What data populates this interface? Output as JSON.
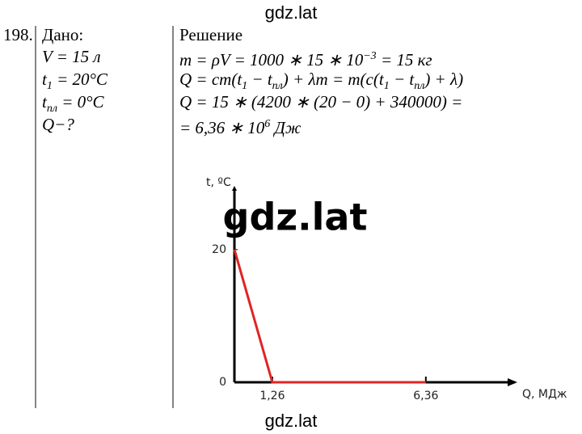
{
  "watermarks": [
    "gdz.lat",
    "gdz.lat",
    "gdz.lat"
  ],
  "problem_number": "198.",
  "given": {
    "title": "Дано:",
    "lines": [
      [
        "V = 15 л"
      ],
      [
        "t",
        "1",
        " = 20°C"
      ],
      [
        "t",
        "пл",
        " = 0°C"
      ],
      [
        "Q−?"
      ]
    ]
  },
  "solution": {
    "title": "Решение",
    "lines": [
      [
        "m = ρV = 1000 ∗ 15 ∗ 10",
        "−3",
        " = 15 кг"
      ],
      [
        "Q = cm(t",
        "1",
        " − t",
        "пл",
        ") + λm = m(c(t",
        "1",
        " − t",
        "пл",
        ") + λ)"
      ],
      [
        "Q = 15 ∗ (4200 ∗ (20 − 0) + 340000) ="
      ],
      [
        "= 6,36 ∗ 10",
        "6",
        " Дж"
      ]
    ]
  },
  "chart_data": {
    "type": "line",
    "x_label": "Q, МДж",
    "y_label": "t, ºC",
    "x": [
      0,
      1.26,
      6.36
    ],
    "series": [
      {
        "color": "#e02424",
        "values": [
          20,
          0,
          0
        ]
      }
    ],
    "xlim": [
      0,
      9.4
    ],
    "ylim": [
      0,
      29.6
    ],
    "xticks": [
      {
        "value": 1.26,
        "label": "1,26"
      },
      {
        "value": 6.36,
        "label": "6,36"
      }
    ],
    "yticks": [
      0,
      20
    ],
    "grid": false
  }
}
